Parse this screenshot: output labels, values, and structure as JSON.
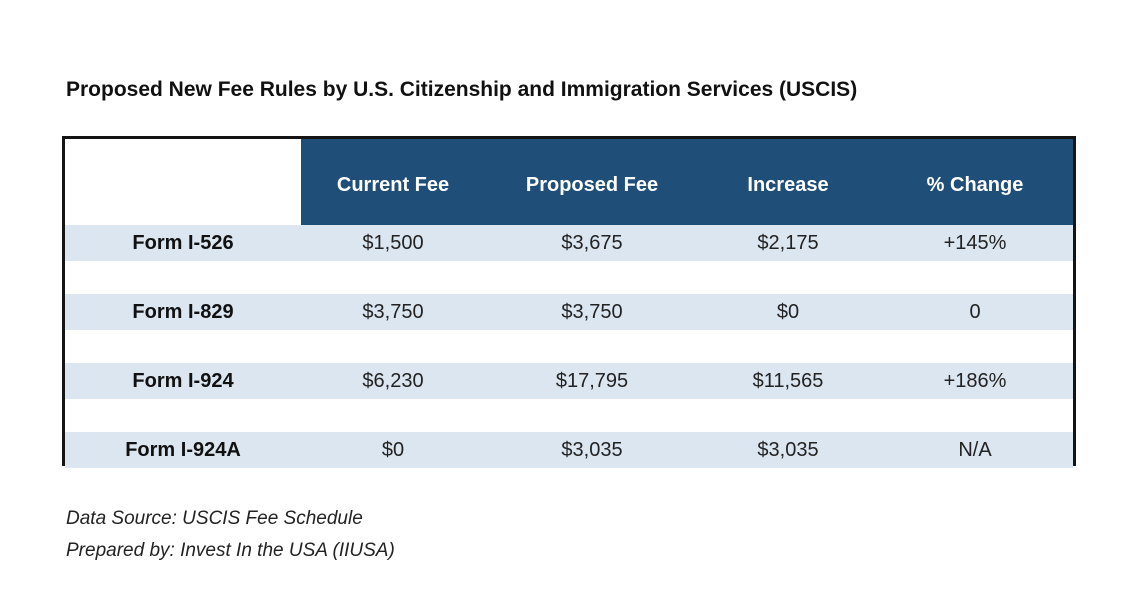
{
  "colors": {
    "header_bg": "#1f4e79",
    "header_text": "#ffffff",
    "band_light": "#dce6f1",
    "band_white": "#ffffff",
    "border": "#141414"
  },
  "chart_data": {
    "type": "table",
    "title": "Proposed New Fee Rules by U.S. Citizenship and Immigration Services (USCIS)",
    "columns": [
      "",
      "Current Fee",
      "Proposed Fee",
      "Increase",
      "% Change"
    ],
    "rows": [
      {
        "label": "Form I-526",
        "current_fee": "$1,500",
        "proposed_fee": "$3,675",
        "increase": "$2,175",
        "pct_change": "+145%"
      },
      {
        "label": "Form I-829",
        "current_fee": "$3,750",
        "proposed_fee": "$3,750",
        "increase": "$0",
        "pct_change": "0"
      },
      {
        "label": "Form I-924",
        "current_fee": "$6,230",
        "proposed_fee": "$17,795",
        "increase": "$11,565",
        "pct_change": "+186%"
      },
      {
        "label": "Form I-924A",
        "current_fee": "$0",
        "proposed_fee": "$3,035",
        "increase": "$3,035",
        "pct_change": "N/A"
      }
    ]
  },
  "footnotes": {
    "source": "Data Source: USCIS Fee Schedule",
    "prepared_by": "Prepared by: Invest In the USA (IIUSA)"
  }
}
